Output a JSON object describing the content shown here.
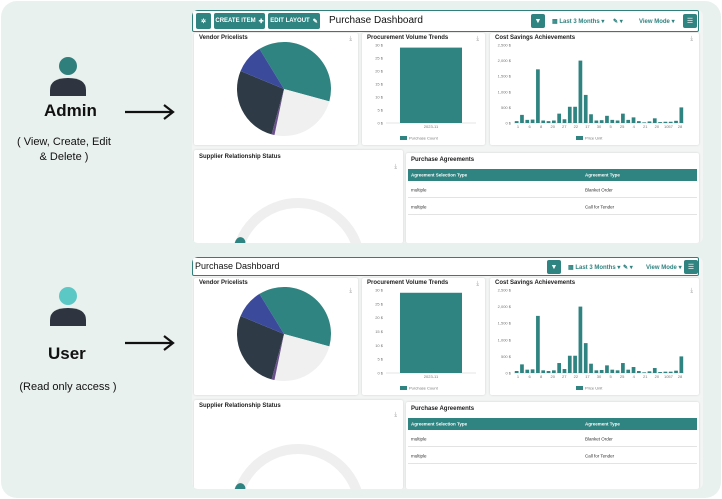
{
  "roles": [
    {
      "name": "Admin",
      "desc_line1": "( View, Create, Edit",
      "desc_line2": "& Delete )"
    },
    {
      "name": "User",
      "desc_line1": "(Read only access )",
      "desc_line2": ""
    }
  ],
  "colors": {
    "teal": "#2f8481",
    "dark": "#2e3a45",
    "blue": "#3b4a9b",
    "light": "#f0f0f0",
    "purple": "#6b4f8c"
  },
  "dashboards": [
    {
      "toolbar": {
        "create_label": "CREATE ITEM",
        "edit_layout_label": "EDIT LAYOUT",
        "title": "Purchase Dashboard",
        "period_label": "Last 3 Months",
        "view_mode_label": "View Mode"
      },
      "cards": {
        "vendor_title": "Vendor Pricelists",
        "volume_title": "Procurement Volume Trends",
        "savings_title": "Cost Savings Achievements",
        "supplier_title": "Supplier Relationship Status",
        "agreements_title": "Purchase Agreements"
      }
    },
    {
      "toolbar": {
        "title": "Purchase Dashboard",
        "period_label": "Last 3 Months",
        "view_mode_label": "View Mode"
      },
      "cards": {
        "vendor_title": "Vendor Pricelists",
        "volume_title": "Procurement Volume Trends",
        "savings_title": "Cost Savings Achievements",
        "supplier_title": "Supplier Relationship Status",
        "agreements_title": "Purchase Agreements"
      }
    }
  ],
  "chart_data": [
    {
      "type": "pie",
      "title": "Vendor Pricelists",
      "slices": [
        {
          "value": 38,
          "color": "#2f8481"
        },
        {
          "value": 24,
          "color": "#f0f0f0"
        },
        {
          "value": 1,
          "color": "#6b4f8c"
        },
        {
          "value": 27,
          "color": "#2e3a45"
        },
        {
          "value": 10,
          "color": "#3b4a9b"
        }
      ]
    },
    {
      "type": "bar",
      "title": "Procurement Volume Trends",
      "categories": [
        "2023-11"
      ],
      "values": [
        29
      ],
      "ylim": [
        0,
        30
      ],
      "yticks": [
        "0 $",
        "5 $",
        "10 $",
        "15 $",
        "20 $",
        "25 $",
        "30 $"
      ],
      "legend": "Purchase Count"
    },
    {
      "type": "bar",
      "title": "Cost Savings Achievements",
      "xticks": [
        "1",
        "6",
        "8",
        "20",
        "27",
        "22",
        "17",
        "30",
        "5",
        "25",
        "4",
        "21",
        "20",
        "1057",
        "28"
      ],
      "values": [
        60,
        260,
        100,
        110,
        1720,
        80,
        60,
        80,
        300,
        120,
        520,
        520,
        2000,
        900,
        280,
        80,
        90,
        230,
        100,
        80,
        300,
        100,
        180,
        60,
        20,
        50,
        150,
        30,
        40,
        40,
        70,
        500
      ],
      "ylim": [
        0,
        2500
      ],
      "yticks": [
        "0 $",
        "500 $",
        "1,000 $",
        "1,500 $",
        "2,000 $",
        "2,500 $"
      ],
      "legend": "Price Unit"
    },
    {
      "type": "gauge",
      "title": "Supplier Relationship Status",
      "fraction": 0.12
    }
  ],
  "agreements": {
    "headers": [
      "Agreement Selection Type",
      "Agreement Type"
    ],
    "rows": [
      [
        "multiple",
        "Blanket Order"
      ],
      [
        "multiple",
        "Call for Tender"
      ]
    ]
  }
}
